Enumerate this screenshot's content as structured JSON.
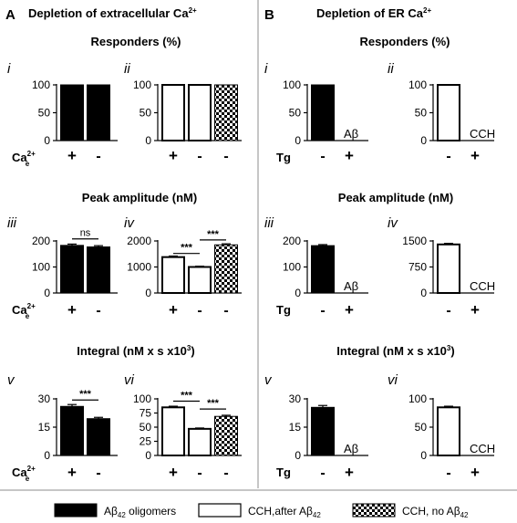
{
  "colors": {
    "abeta_fill": "#000000",
    "cch_fill": "#ffffff",
    "axis": "#000000",
    "divider": "#8c8c8c"
  },
  "panels": [
    {
      "letter": "A",
      "title": "Depletion of extracellular Ca",
      "title_sup": "2+",
      "condition_label": "Ca",
      "condition_sup": "2+",
      "condition_sub": "e"
    },
    {
      "letter": "B",
      "title": "Depletion of ER Ca",
      "title_sup": "2+",
      "condition_label": "Tg",
      "condition_sup": "",
      "condition_sub": ""
    }
  ],
  "section_titles": [
    {
      "text": "Responders (%)"
    },
    {
      "text": "Peak amplitude (nM)"
    },
    {
      "text": "Integral  (nM x s x10",
      "sup": "3",
      "end": ")"
    }
  ],
  "legend": [
    {
      "pattern": "solid",
      "label": "Aβ",
      "sub": "42",
      "end": " oligomers"
    },
    {
      "pattern": "empty",
      "label": "CCH,after Aβ",
      "sub": "42",
      "end": ""
    },
    {
      "pattern": "checker",
      "label": "CCH, no Aβ",
      "sub": "42",
      "end": ""
    }
  ],
  "chart_data": [
    {
      "panel": "A",
      "row": "Responders (%)",
      "label": "i",
      "type": "bar",
      "categories": [
        "+",
        "-"
      ],
      "patterns": [
        "solid",
        "solid"
      ],
      "values": [
        100,
        100
      ],
      "errors": [
        0,
        0
      ],
      "yticks": [
        "0",
        "50",
        "100"
      ],
      "ylim": [
        0,
        100
      ],
      "note": "",
      "significance": []
    },
    {
      "panel": "A",
      "row": "Responders (%)",
      "label": "ii",
      "type": "bar",
      "categories": [
        "+",
        "-",
        "-"
      ],
      "patterns": [
        "empty",
        "empty",
        "checker"
      ],
      "values": [
        100,
        100,
        100
      ],
      "errors": [
        0,
        0,
        0
      ],
      "yticks": [
        "0",
        "50",
        "100"
      ],
      "ylim": [
        0,
        100
      ],
      "note": "",
      "significance": []
    },
    {
      "panel": "A",
      "row": "Peak amplitude (nM)",
      "label": "iii",
      "type": "bar",
      "categories": [
        "+",
        "-"
      ],
      "patterns": [
        "solid",
        "solid"
      ],
      "values": [
        183,
        177
      ],
      "errors": [
        5,
        5
      ],
      "yticks": [
        "0",
        "100",
        "200"
      ],
      "ylim": [
        0,
        200
      ],
      "note": "",
      "significance": [
        {
          "from": 0,
          "to": 1,
          "text": "ns",
          "level": 1.04
        }
      ]
    },
    {
      "panel": "A",
      "row": "Peak amplitude (nM)",
      "label": "iv",
      "type": "bar",
      "categories": [
        "+",
        "-",
        "-"
      ],
      "patterns": [
        "empty",
        "empty",
        "checker"
      ],
      "values": [
        1380,
        1000,
        1850
      ],
      "errors": [
        40,
        30,
        40
      ],
      "yticks": [
        "0",
        "1000",
        "2000"
      ],
      "ylim": [
        0,
        2000
      ],
      "note": "",
      "significance": [
        {
          "from": 0,
          "to": 1,
          "text": "***",
          "level": 0.76
        },
        {
          "from": 1,
          "to": 2,
          "text": "***",
          "level": 1.02
        }
      ]
    },
    {
      "panel": "A",
      "row": "Integral",
      "label": "v",
      "type": "bar",
      "categories": [
        "+",
        "-"
      ],
      "patterns": [
        "solid",
        "solid"
      ],
      "values": [
        26,
        19.5
      ],
      "errors": [
        1,
        0.7
      ],
      "yticks": [
        "0",
        "15",
        "30"
      ],
      "ylim": [
        0,
        30
      ],
      "note": "",
      "significance": [
        {
          "from": 0,
          "to": 1,
          "text": "***",
          "level": 0.98
        }
      ]
    },
    {
      "panel": "A",
      "row": "Integral",
      "label": "vi",
      "type": "bar",
      "categories": [
        "+",
        "-",
        "-"
      ],
      "patterns": [
        "empty",
        "empty",
        "checker"
      ],
      "values": [
        85,
        47,
        69
      ],
      "errors": [
        2,
        1.5,
        2
      ],
      "yticks": [
        "0",
        "25",
        "50",
        "75",
        "100"
      ],
      "ylim": [
        0,
        100
      ],
      "note": "",
      "significance": [
        {
          "from": 0,
          "to": 1,
          "text": "***",
          "level": 0.96
        },
        {
          "from": 1,
          "to": 2,
          "text": "***",
          "level": 0.82
        }
      ]
    },
    {
      "panel": "B",
      "row": "Responders (%)",
      "label": "i",
      "type": "bar",
      "categories": [
        "-",
        "+"
      ],
      "patterns": [
        "solid",
        "solid"
      ],
      "values": [
        100,
        0
      ],
      "errors": [
        0,
        0
      ],
      "yticks": [
        "0",
        "50",
        "100"
      ],
      "ylim": [
        0,
        100
      ],
      "note": "Aβ",
      "significance": []
    },
    {
      "panel": "B",
      "row": "Responders (%)",
      "label": "ii",
      "type": "bar",
      "categories": [
        "-",
        "+"
      ],
      "patterns": [
        "empty",
        "empty"
      ],
      "values": [
        100,
        0
      ],
      "errors": [
        0,
        0
      ],
      "yticks": [
        "0",
        "50",
        "100"
      ],
      "ylim": [
        0,
        100
      ],
      "note": "CCH",
      "significance": []
    },
    {
      "panel": "B",
      "row": "Peak amplitude (nM)",
      "label": "iii",
      "type": "bar",
      "categories": [
        "-",
        "+"
      ],
      "patterns": [
        "solid",
        "solid"
      ],
      "values": [
        182,
        0
      ],
      "errors": [
        4,
        0
      ],
      "yticks": [
        "0",
        "100",
        "200"
      ],
      "ylim": [
        0,
        200
      ],
      "note": "Aβ",
      "significance": []
    },
    {
      "panel": "B",
      "row": "Peak amplitude (nM)",
      "label": "iv",
      "type": "bar",
      "categories": [
        "-",
        "+"
      ],
      "patterns": [
        "empty",
        "empty"
      ],
      "values": [
        1400,
        0
      ],
      "errors": [
        30,
        0
      ],
      "yticks": [
        "0",
        "750",
        "1500"
      ],
      "ylim": [
        0,
        1500
      ],
      "note": "CCH",
      "significance": []
    },
    {
      "panel": "B",
      "row": "Integral",
      "label": "v",
      "type": "bar",
      "categories": [
        "-",
        "+"
      ],
      "patterns": [
        "solid",
        "solid"
      ],
      "values": [
        25.5,
        0
      ],
      "errors": [
        1,
        0
      ],
      "yticks": [
        "0",
        "15",
        "30"
      ],
      "ylim": [
        0,
        30
      ],
      "note": "Aβ",
      "significance": []
    },
    {
      "panel": "B",
      "row": "Integral",
      "label": "vi",
      "type": "bar",
      "categories": [
        "-",
        "+"
      ],
      "patterns": [
        "empty",
        "empty"
      ],
      "values": [
        85,
        0
      ],
      "errors": [
        2,
        0
      ],
      "yticks": [
        "0",
        "50",
        "100"
      ],
      "ylim": [
        0,
        100
      ],
      "note": "CCH",
      "significance": []
    }
  ]
}
